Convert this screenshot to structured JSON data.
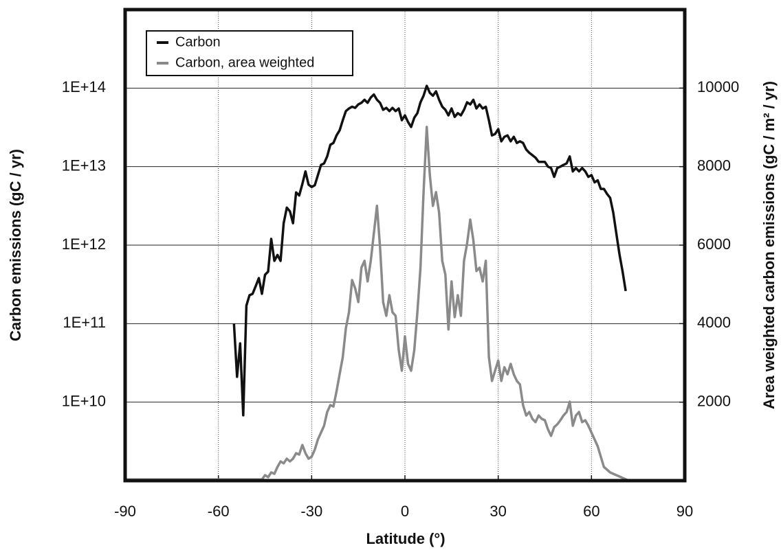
{
  "chart_data": {
    "type": "line",
    "xlabel": "Latitude   (°)",
    "ylabel": "Carbon emissions  (gC / yr)",
    "y2label": "Area weighted carbon emissions  (gC / m² / yr)",
    "xlim": [
      -90,
      90
    ],
    "xticks": [
      -90,
      -60,
      -30,
      0,
      30,
      60,
      90
    ],
    "ylim": [
      1000000000.0,
      1000000000000000.0
    ],
    "yscale": "log",
    "yticks": [
      {
        "value": 10000000000.0,
        "label": "1E+10"
      },
      {
        "value": 100000000000.0,
        "label": "1E+11"
      },
      {
        "value": 1000000000000.0,
        "label": "1E+12"
      },
      {
        "value": 10000000000000.0,
        "label": "1E+13"
      },
      {
        "value": 100000000000000.0,
        "label": "1E+14"
      }
    ],
    "y2lim": [
      0,
      12000
    ],
    "y2ticks": [
      2000,
      4000,
      6000,
      8000,
      10000
    ],
    "grid": true,
    "legend": "upper left",
    "series": [
      {
        "name": "Carbon",
        "color": "#111111",
        "x": [
          -55,
          -54,
          -53,
          -52,
          -51,
          -50,
          -49,
          -48,
          -47,
          -46,
          -45,
          -44,
          -43,
          -42,
          -41,
          -40,
          -39,
          -38,
          -37,
          -36,
          -35,
          -34,
          -33,
          -32,
          -31,
          -30,
          -29,
          -28,
          -27,
          -26,
          -25,
          -24,
          -23,
          -22,
          -21,
          -20,
          -19,
          -18,
          -17,
          -16,
          -15,
          -14,
          -13,
          -12,
          -11,
          -10,
          -9,
          -8,
          -7,
          -6,
          -5,
          -4,
          -3,
          -2,
          -1,
          0,
          1,
          2,
          3,
          4,
          5,
          6,
          7,
          8,
          9,
          10,
          11,
          12,
          13,
          14,
          15,
          16,
          17,
          18,
          19,
          20,
          21,
          22,
          23,
          24,
          25,
          26,
          27,
          28,
          29,
          30,
          31,
          32,
          33,
          34,
          35,
          36,
          37,
          38,
          39,
          40,
          41,
          42,
          43,
          44,
          45,
          46,
          47,
          48,
          49,
          50,
          51,
          52,
          53,
          54,
          55,
          56,
          57,
          58,
          59,
          60,
          61,
          62,
          63,
          64,
          65,
          66,
          67,
          68,
          69,
          70,
          71
        ],
        "values": [
          100000000000.0,
          21000000000.0,
          56000000000.0,
          6800000000.0,
          170000000000.0,
          230000000000.0,
          240000000000.0,
          300000000000.0,
          380000000000.0,
          240000000000.0,
          420000000000.0,
          460000000000.0,
          1200000000000.0,
          630000000000.0,
          750000000000.0,
          630000000000.0,
          1900000000000.0,
          3000000000000.0,
          2700000000000.0,
          1900000000000.0,
          4700000000000.0,
          4300000000000.0,
          6000000000000.0,
          8700000000000.0,
          5900000000000.0,
          5500000000000.0,
          5800000000000.0,
          7800000000000.0,
          10500000000000.0,
          11000000000000.0,
          13500000000000.0,
          19000000000000.0,
          20000000000000.0,
          25000000000000.0,
          29000000000000.0,
          39000000000000.0,
          51000000000000.0,
          55000000000000.0,
          58000000000000.0,
          56000000000000.0,
          62000000000000.0,
          65000000000000.0,
          71000000000000.0,
          65000000000000.0,
          76000000000000.0,
          83000000000000.0,
          71000000000000.0,
          65000000000000.0,
          53000000000000.0,
          56000000000000.0,
          51000000000000.0,
          56000000000000.0,
          51000000000000.0,
          55000000000000.0,
          39000000000000.0,
          45000000000000.0,
          37000000000000.0,
          32000000000000.0,
          42000000000000.0,
          48000000000000.0,
          66000000000000.0,
          80000000000000.0,
          107000000000000.0,
          87000000000000.0,
          80000000000000.0,
          91000000000000.0,
          71000000000000.0,
          58000000000000.0,
          53000000000000.0,
          45000000000000.0,
          55000000000000.0,
          43000000000000.0,
          48000000000000.0,
          45000000000000.0,
          53000000000000.0,
          66000000000000.0,
          62000000000000.0,
          71000000000000.0,
          55000000000000.0,
          62000000000000.0,
          55000000000000.0,
          58000000000000.0,
          39000000000000.0,
          25000000000000.0,
          26000000000000.0,
          30000000000000.0,
          21000000000000.0,
          24000000000000.0,
          25000000000000.0,
          21000000000000.0,
          24000000000000.0,
          20000000000000.0,
          21000000000000.0,
          20000000000000.0,
          16500000000000.0,
          15000000000000.0,
          14000000000000.0,
          13000000000000.0,
          11500000000000.0,
          11500000000000.0,
          11500000000000.0,
          10000000000000.0,
          9600000000000.0,
          7400000000000.0,
          9600000000000.0,
          10000000000000.0,
          10500000000000.0,
          11000000000000.0,
          13500000000000.0,
          8700000000000.0,
          9600000000000.0,
          8700000000000.0,
          9600000000000.0,
          8700000000000.0,
          7400000000000.0,
          7800000000000.0,
          6300000000000.0,
          6700000000000.0,
          5200000000000.0,
          5200000000000.0,
          4500000000000.0,
          4000000000000.0,
          2600000000000.0,
          1400000000000.0,
          770000000000.0,
          460000000000.0,
          260000000000.0
        ]
      },
      {
        "name": "Carbon, area weighted",
        "color": "#8a8a8a",
        "axis": "y2",
        "x": [
          -90,
          -46,
          -45,
          -44,
          -43,
          -42,
          -41,
          -40,
          -39,
          -38,
          -37,
          -36,
          -35,
          -34,
          -33,
          -32,
          -31,
          -30,
          -29,
          -28,
          -27,
          -26,
          -25,
          -24,
          -23,
          -22,
          -21,
          -20,
          -19,
          -18,
          -17,
          -16,
          -15,
          -14,
          -13,
          -12,
          -11,
          -10,
          -9,
          -8,
          -7,
          -6,
          -5,
          -4,
          -3,
          -2,
          -1,
          0,
          1,
          2,
          3,
          4,
          5,
          6,
          7,
          8,
          9,
          10,
          11,
          12,
          13,
          14,
          15,
          16,
          17,
          18,
          19,
          20,
          21,
          22,
          23,
          24,
          25,
          26,
          27,
          28,
          29,
          30,
          31,
          32,
          33,
          34,
          35,
          36,
          37,
          38,
          39,
          40,
          41,
          42,
          43,
          44,
          45,
          46,
          47,
          48,
          49,
          50,
          51,
          52,
          53,
          54,
          55,
          56,
          57,
          58,
          59,
          60,
          61,
          62,
          63,
          64,
          66,
          68,
          70,
          72
        ],
        "values": [
          30,
          30,
          140,
          90,
          210,
          175,
          350,
          490,
          440,
          560,
          490,
          560,
          700,
          665,
          910,
          700,
          560,
          610,
          790,
          1050,
          1225,
          1400,
          1750,
          1925,
          1890,
          2275,
          2710,
          3150,
          3885,
          4290,
          5110,
          4900,
          4550,
          5425,
          5600,
          5075,
          5600,
          6300,
          7000,
          5950,
          4550,
          4200,
          4725,
          4290,
          4200,
          3325,
          2800,
          3675,
          2975,
          2800,
          3325,
          4290,
          5425,
          7350,
          9010,
          7790,
          7000,
          7350,
          6825,
          5600,
          5250,
          3850,
          5075,
          4165,
          4725,
          4200,
          5600,
          6040,
          6650,
          6125,
          5340,
          5425,
          5075,
          5600,
          3150,
          2540,
          2800,
          3060,
          2540,
          2890,
          2710,
          2975,
          2710,
          2540,
          2450,
          1925,
          1660,
          1750,
          1575,
          1490,
          1660,
          1575,
          1540,
          1310,
          1140,
          1365,
          1435,
          1540,
          1660,
          1750,
          2010,
          1400,
          1660,
          1750,
          1490,
          1540,
          1400,
          1225,
          1050,
          875,
          610,
          350,
          210,
          140,
          70,
          0
        ]
      }
    ]
  }
}
